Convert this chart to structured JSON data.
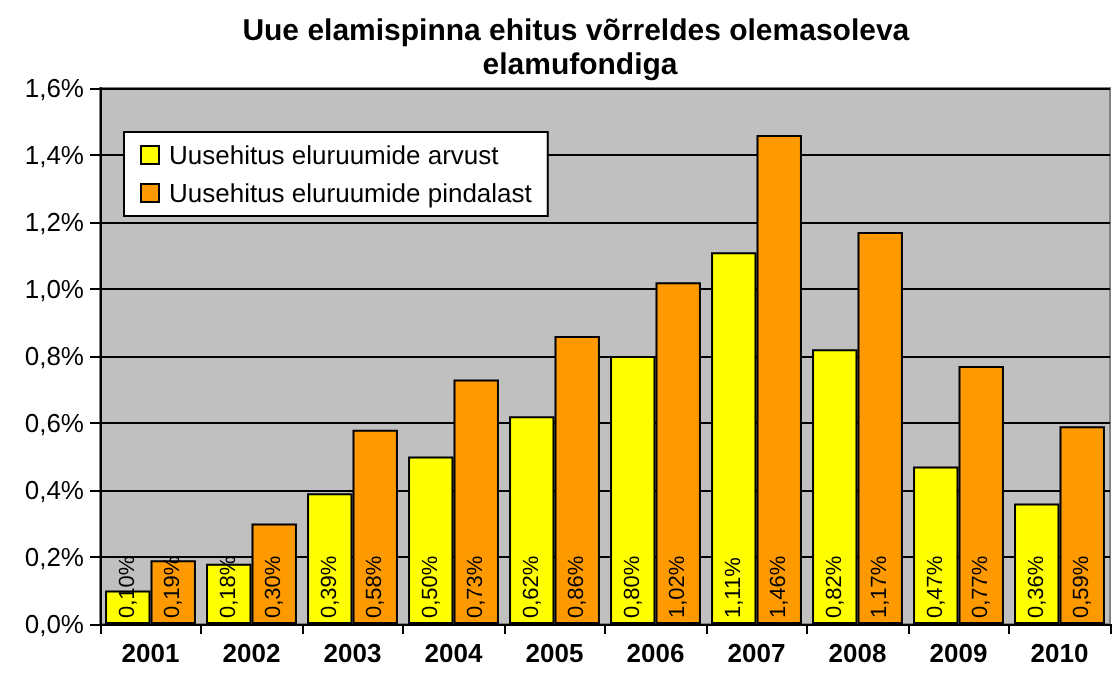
{
  "chart_data": {
    "type": "bar",
    "title": "Uue elamispinna ehitus võrreldes olemasoleva elamufondiga",
    "categories": [
      "2001",
      "2002",
      "2003",
      "2004",
      "2005",
      "2006",
      "2007",
      "2008",
      "2009",
      "2010"
    ],
    "series": [
      {
        "name": "Uusehitus eluruumide arvust",
        "color": "#ffff00",
        "values": [
          0.1,
          0.18,
          0.39,
          0.5,
          0.62,
          0.8,
          1.11,
          0.82,
          0.47,
          0.36
        ],
        "value_labels": [
          "0,10%",
          "0,18%",
          "0,39%",
          "0,50%",
          "0,62%",
          "0,80%",
          "1,11%",
          "0,82%",
          "0,47%",
          "0,36%"
        ]
      },
      {
        "name": "Uusehitus eluruumide pindalast",
        "color": "#ff9900",
        "values": [
          0.19,
          0.3,
          0.58,
          0.73,
          0.86,
          1.02,
          1.46,
          1.17,
          0.77,
          0.59
        ],
        "value_labels": [
          "0,19%",
          "0,30%",
          "0,58%",
          "0,73%",
          "0,86%",
          "1,02%",
          "1,46%",
          "1,17%",
          "0,77%",
          "0,59%"
        ]
      }
    ],
    "ylim": [
      0,
      1.6
    ],
    "yticks": [
      {
        "value": 0,
        "label": "0,0%"
      },
      {
        "value": 0.2,
        "label": "0,2%"
      },
      {
        "value": 0.4,
        "label": "0,4%"
      },
      {
        "value": 0.6,
        "label": "0,6%"
      },
      {
        "value": 0.8,
        "label": "0,8%"
      },
      {
        "value": 1.0,
        "label": "1,0%"
      },
      {
        "value": 1.2,
        "label": "1,2%"
      },
      {
        "value": 1.4,
        "label": "1,4%"
      },
      {
        "value": 1.6,
        "label": "1,6%"
      }
    ],
    "grid": "y",
    "legend": "top left"
  }
}
